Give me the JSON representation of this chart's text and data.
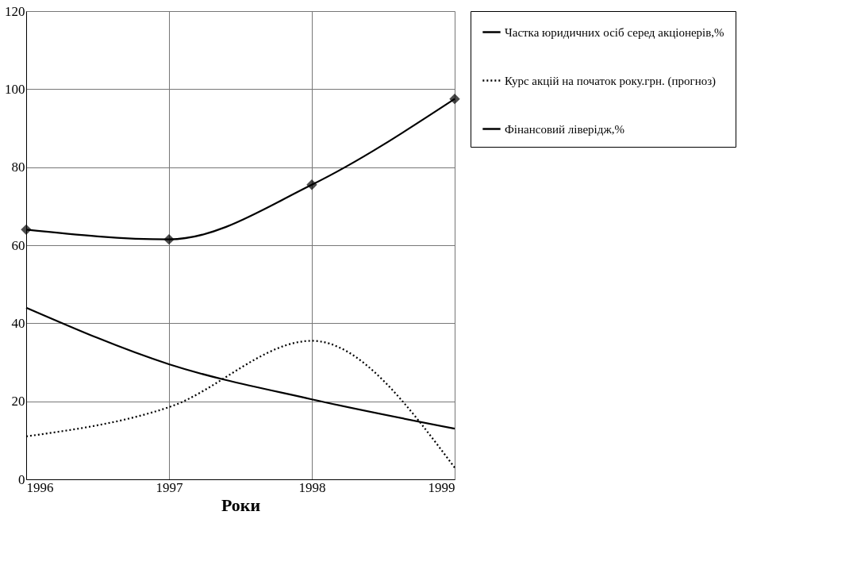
{
  "chart_data": {
    "type": "line",
    "xlabel": "Роки",
    "x": [
      1996,
      1997,
      1998,
      1999
    ],
    "series": [
      {
        "name": "Частка юридичних осіб серед акціонерів,%",
        "color": "#000000",
        "line_style": "solid",
        "marker": "none",
        "values": [
          44,
          29.5,
          20.5,
          13
        ]
      },
      {
        "name": "Курс акцій на початок року.грн. (прогноз)",
        "color": "#000000",
        "line_style": "dotted",
        "marker": "none",
        "values": [
          11,
          18.5,
          35.5,
          3
        ]
      },
      {
        "name": "Фінансовий ліверідж,%",
        "color": "#000000",
        "line_style": "solid",
        "marker": "diamond",
        "values": [
          64,
          61.5,
          75.5,
          97.5
        ]
      }
    ],
    "xlim": [
      1996,
      1999
    ],
    "xticks": [
      1996,
      1997,
      1998,
      1999
    ],
    "ylim": [
      0,
      120
    ],
    "yticks": [
      0,
      20,
      40,
      60,
      80,
      100,
      120
    ],
    "grid": true,
    "legend": "right"
  }
}
